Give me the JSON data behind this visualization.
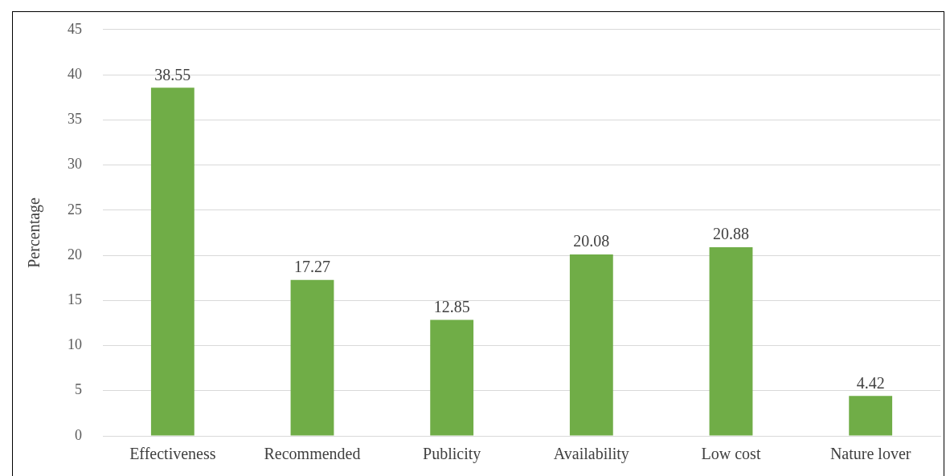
{
  "chart_data": {
    "type": "bar",
    "ylabel": "Percentage",
    "categories": [
      "Effectiveness",
      "Recommended",
      "Publicity",
      "Availability",
      "Low cost",
      "Nature lover"
    ],
    "values": [
      38.55,
      17.27,
      12.85,
      20.08,
      20.88,
      4.42
    ],
    "color": "#70ad47",
    "ylim": [
      0,
      45
    ],
    "yticks": [
      0,
      5,
      10,
      15,
      20,
      25,
      30,
      35,
      40,
      45
    ],
    "grid": "y",
    "data_labels": true,
    "legend": false
  }
}
